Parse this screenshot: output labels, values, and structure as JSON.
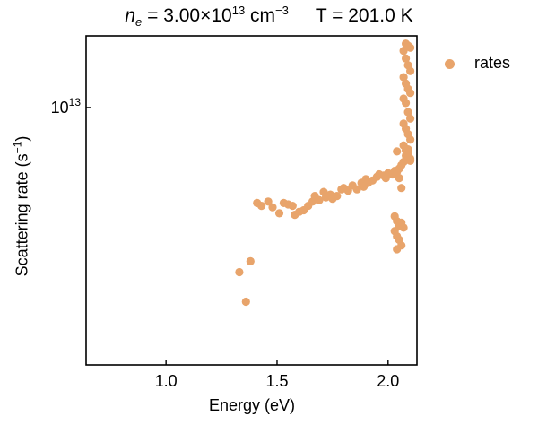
{
  "chart_data": {
    "type": "scatter",
    "title": {
      "ne_symbol": "n",
      "ne_subscript": "e",
      "density_prefix": " = 3.00×10",
      "density_exponent": "13",
      "density_unit": " cm",
      "density_unit_exponent": "−3",
      "temperature": "T = 201.0 K"
    },
    "xlabel": "Energy (eV)",
    "ylabel": "Scattering rate (s",
    "ylabel_exponent": "−1",
    "ylabel_close": ")",
    "xlim": [
      0.64,
      2.13
    ],
    "ylim": [
      1850000000000.0,
      16000000000000.0
    ],
    "yscale": "log",
    "xticks": [
      1.0,
      1.5,
      2.0
    ],
    "xtick_labels": [
      "1.0",
      "1.5",
      "2.0"
    ],
    "yticks": [
      10000000000000.0
    ],
    "ytick_labels": [
      {
        "base": "10",
        "exp": "13"
      }
    ],
    "legend": {
      "position": "outside-top-right",
      "label": "rates"
    },
    "series": [
      {
        "name": "rates",
        "color": "#E8A46B",
        "points": [
          [
            1.33,
            3400000000000.0
          ],
          [
            1.36,
            2800000000000.0
          ],
          [
            1.38,
            3650000000000.0
          ],
          [
            1.41,
            5350000000000.0
          ],
          [
            1.43,
            5250000000000.0
          ],
          [
            1.46,
            5400000000000.0
          ],
          [
            1.48,
            5200000000000.0
          ],
          [
            1.51,
            5000000000000.0
          ],
          [
            1.53,
            5350000000000.0
          ],
          [
            1.55,
            5300000000000.0
          ],
          [
            1.57,
            5250000000000.0
          ],
          [
            1.58,
            4950000000000.0
          ],
          [
            1.6,
            5050000000000.0
          ],
          [
            1.62,
            5100000000000.0
          ],
          [
            1.64,
            5250000000000.0
          ],
          [
            1.66,
            5400000000000.0
          ],
          [
            1.67,
            5600000000000.0
          ],
          [
            1.69,
            5450000000000.0
          ],
          [
            1.71,
            5750000000000.0
          ],
          [
            1.72,
            5550000000000.0
          ],
          [
            1.74,
            5650000000000.0
          ],
          [
            1.75,
            5500000000000.0
          ],
          [
            1.77,
            5600000000000.0
          ],
          [
            1.79,
            5850000000000.0
          ],
          [
            1.8,
            5900000000000.0
          ],
          [
            1.82,
            5800000000000.0
          ],
          [
            1.84,
            6000000000000.0
          ],
          [
            1.86,
            5850000000000.0
          ],
          [
            1.88,
            6100000000000.0
          ],
          [
            1.89,
            5950000000000.0
          ],
          [
            1.9,
            6250000000000.0
          ],
          [
            1.91,
            6100000000000.0
          ],
          [
            1.93,
            6200000000000.0
          ],
          [
            1.95,
            6350000000000.0
          ],
          [
            1.96,
            6450000000000.0
          ],
          [
            1.98,
            6400000000000.0
          ],
          [
            1.99,
            6300000000000.0
          ],
          [
            2.0,
            6500000000000.0
          ],
          [
            2.02,
            6450000000000.0
          ],
          [
            2.03,
            6600000000000.0
          ],
          [
            2.04,
            6550000000000.0
          ],
          [
            2.05,
            6700000000000.0
          ],
          [
            2.06,
            6850000000000.0
          ],
          [
            2.07,
            7000000000000.0
          ],
          [
            2.08,
            7300000000000.0
          ],
          [
            2.09,
            7600000000000.0
          ],
          [
            2.05,
            6300000000000.0
          ],
          [
            2.06,
            5900000000000.0
          ],
          [
            2.04,
            7500000000000.0
          ],
          [
            2.1,
            7050000000000.0
          ],
          [
            2.03,
            4900000000000.0
          ],
          [
            2.04,
            4750000000000.0
          ],
          [
            2.05,
            4600000000000.0
          ],
          [
            2.03,
            4450000000000.0
          ],
          [
            2.04,
            4300000000000.0
          ],
          [
            2.06,
            4700000000000.0
          ],
          [
            2.07,
            4550000000000.0
          ],
          [
            2.05,
            4200000000000.0
          ],
          [
            2.06,
            4050000000000.0
          ],
          [
            2.04,
            3950000000000.0
          ],
          [
            2.07,
            14500000000000.0
          ],
          [
            2.08,
            13800000000000.0
          ],
          [
            2.09,
            13200000000000.0
          ],
          [
            2.1,
            12700000000000.0
          ],
          [
            2.07,
            12200000000000.0
          ],
          [
            2.08,
            11700000000000.0
          ],
          [
            2.09,
            11300000000000.0
          ],
          [
            2.1,
            11000000000000.0
          ],
          [
            2.07,
            10600000000000.0
          ],
          [
            2.08,
            10300000000000.0
          ],
          [
            2.09,
            9700000000000.0
          ],
          [
            2.1,
            9300000000000.0
          ],
          [
            2.07,
            9000000000000.0
          ],
          [
            2.08,
            8700000000000.0
          ],
          [
            2.09,
            8400000000000.0
          ],
          [
            2.1,
            8100000000000.0
          ],
          [
            2.07,
            7800000000000.0
          ],
          [
            2.08,
            7550000000000.0
          ],
          [
            2.09,
            7350000000000.0
          ],
          [
            2.1,
            7150000000000.0
          ],
          [
            2.09,
            15000000000000.0
          ],
          [
            2.1,
            14800000000000.0
          ],
          [
            2.08,
            15200000000000.0
          ]
        ]
      }
    ]
  }
}
